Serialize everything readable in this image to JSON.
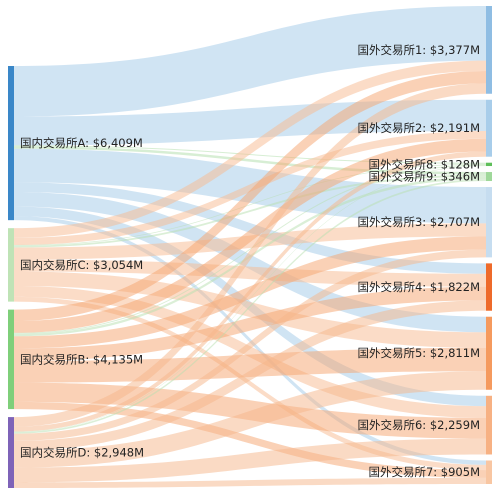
{
  "chart_data": {
    "type": "sankey",
    "unit_prefix": "$",
    "unit_suffix": "M",
    "sources": [
      {
        "name": "国内交易所A",
        "value": 6409,
        "color": "#3a87c8",
        "link_color": "#a9cdea"
      },
      {
        "name": "国内交易所C",
        "value": 3054,
        "color": "#bfe3b6",
        "link_color": "#f7b98f"
      },
      {
        "name": "国内交易所B",
        "value": 4135,
        "color": "#7fcf7a",
        "link_color": "#f5a36e"
      },
      {
        "name": "国内交易所D",
        "value": 2948,
        "color": "#7e63b8",
        "link_color": "#f6b58a"
      }
    ],
    "targets": [
      {
        "name": "国外交易所1",
        "value": 3377,
        "color": "#8fbde3"
      },
      {
        "name": "国外交易所2",
        "value": 2191,
        "color": "#a8cdea"
      },
      {
        "name": "国外交易所8",
        "value": 128,
        "color": "#5fbf5a"
      },
      {
        "name": "国外交易所9",
        "value": 346,
        "color": "#9fd89a"
      },
      {
        "name": "国外交易所3",
        "value": 2707,
        "color": "#c6ddf0"
      },
      {
        "name": "国外交易所4",
        "value": 1822,
        "color": "#ee6a2a"
      },
      {
        "name": "国外交易所5",
        "value": 2811,
        "color": "#f59a5e"
      },
      {
        "name": "国外交易所6",
        "value": 2259,
        "color": "#f7b183"
      },
      {
        "name": "国外交易所7",
        "value": 905,
        "color": "#f8c6a2"
      }
    ],
    "links": [
      {
        "source": 0,
        "target": 0,
        "value": 2100
      },
      {
        "source": 0,
        "target": 1,
        "value": 1200
      },
      {
        "source": 0,
        "target": 2,
        "value": 40
      },
      {
        "source": 0,
        "target": 3,
        "value": 100
      },
      {
        "source": 0,
        "target": 4,
        "value": 1400
      },
      {
        "source": 0,
        "target": 5,
        "value": 400
      },
      {
        "source": 0,
        "target": 6,
        "value": 600
      },
      {
        "source": 0,
        "target": 7,
        "value": 400
      },
      {
        "source": 0,
        "target": 8,
        "value": 169
      },
      {
        "source": 1,
        "target": 0,
        "value": 400
      },
      {
        "source": 1,
        "target": 1,
        "value": 300
      },
      {
        "source": 1,
        "target": 2,
        "value": 28
      },
      {
        "source": 1,
        "target": 3,
        "value": 76
      },
      {
        "source": 1,
        "target": 4,
        "value": 500
      },
      {
        "source": 1,
        "target": 5,
        "value": 500
      },
      {
        "source": 1,
        "target": 6,
        "value": 600
      },
      {
        "source": 1,
        "target": 7,
        "value": 450
      },
      {
        "source": 1,
        "target": 8,
        "value": 200
      },
      {
        "source": 2,
        "target": 0,
        "value": 477
      },
      {
        "source": 2,
        "target": 1,
        "value": 491
      },
      {
        "source": 2,
        "target": 2,
        "value": 40
      },
      {
        "source": 2,
        "target": 3,
        "value": 100
      },
      {
        "source": 2,
        "target": 4,
        "value": 507
      },
      {
        "source": 2,
        "target": 5,
        "value": 522
      },
      {
        "source": 2,
        "target": 6,
        "value": 900
      },
      {
        "source": 2,
        "target": 7,
        "value": 798
      },
      {
        "source": 2,
        "target": 8,
        "value": 300
      },
      {
        "source": 3,
        "target": 0,
        "value": 400
      },
      {
        "source": 3,
        "target": 1,
        "value": 200
      },
      {
        "source": 3,
        "target": 2,
        "value": 20
      },
      {
        "source": 3,
        "target": 3,
        "value": 70
      },
      {
        "source": 3,
        "target": 4,
        "value": 300
      },
      {
        "source": 3,
        "target": 5,
        "value": 400
      },
      {
        "source": 3,
        "target": 6,
        "value": 711
      },
      {
        "source": 3,
        "target": 7,
        "value": 611
      },
      {
        "source": 3,
        "target": 8,
        "value": 236
      }
    ]
  }
}
